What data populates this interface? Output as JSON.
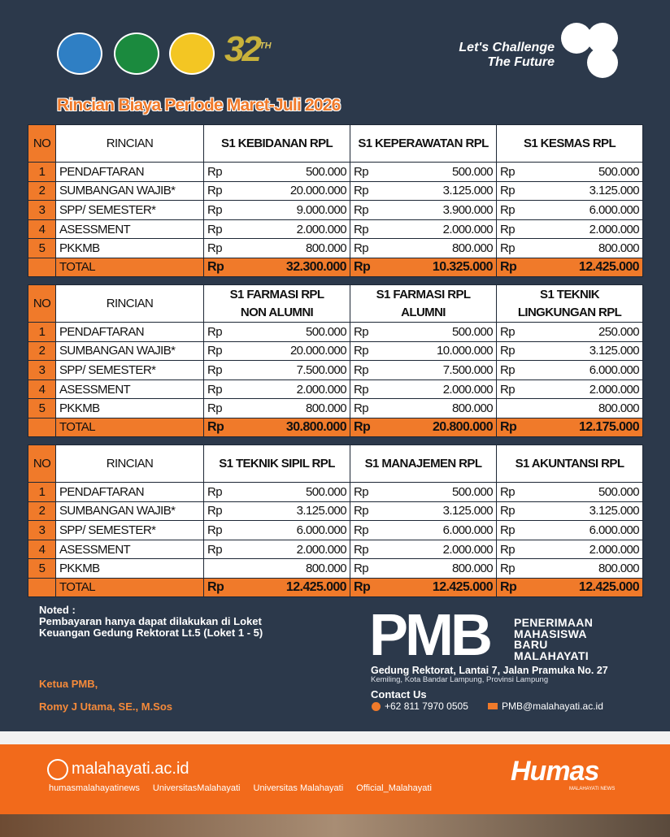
{
  "header": {
    "anniversary": "32",
    "anniversary_suffix": "TH",
    "tagline": [
      "Let's Challenge",
      "The Future"
    ]
  },
  "title": "Rincian Biaya Periode Maret-Juli 2026",
  "tables": [
    {
      "no_header": "NO",
      "item_header": "RINCIAN",
      "programs": [
        [
          "S1 KEBIDANAN RPL"
        ],
        [
          "S1 KEPERAWATAN RPL"
        ],
        [
          "S1 KESMAS RPL"
        ]
      ],
      "rows": [
        {
          "no": "1",
          "item": "PENDAFTARAN",
          "cells": [
            [
              "Rp",
              "500.000"
            ],
            [
              "Rp",
              "500.000"
            ],
            [
              "Rp",
              "500.000"
            ]
          ]
        },
        {
          "no": "2",
          "item": "SUMBANGAN WAJIB*",
          "cells": [
            [
              "Rp",
              "20.000.000"
            ],
            [
              "Rp",
              "3.125.000"
            ],
            [
              "Rp",
              "3.125.000"
            ]
          ]
        },
        {
          "no": "3",
          "item": "SPP/ SEMESTER*",
          "cells": [
            [
              "Rp",
              "9.000.000"
            ],
            [
              "Rp",
              "3.900.000"
            ],
            [
              "Rp",
              "6.000.000"
            ]
          ]
        },
        {
          "no": "4",
          "item": "ASESSMENT",
          "cells": [
            [
              "Rp",
              "2.000.000"
            ],
            [
              "Rp",
              "2.000.000"
            ],
            [
              "Rp",
              "2.000.000"
            ]
          ]
        },
        {
          "no": "5",
          "item": "PKKMB",
          "cells": [
            [
              "Rp",
              "800.000"
            ],
            [
              "Rp",
              "800.000"
            ],
            [
              "Rp",
              "800.000"
            ]
          ]
        }
      ],
      "total": {
        "label": "TOTAL",
        "cells": [
          [
            "Rp",
            "32.300.000"
          ],
          [
            "Rp",
            "10.325.000"
          ],
          [
            "Rp",
            "12.425.000"
          ]
        ]
      }
    },
    {
      "no_header": "NO",
      "item_header": "RINCIAN",
      "programs": [
        [
          "S1 FARMASI RPL",
          "NON ALUMNI"
        ],
        [
          "S1 FARMASI RPL",
          "ALUMNI"
        ],
        [
          "S1 TEKNIK",
          "LINGKUNGAN RPL"
        ]
      ],
      "rows": [
        {
          "no": "1",
          "item": "PENDAFTARAN",
          "cells": [
            [
              "Rp",
              "500.000"
            ],
            [
              "Rp",
              "500.000"
            ],
            [
              "Rp",
              "250.000"
            ]
          ]
        },
        {
          "no": "2",
          "item": "SUMBANGAN WAJIB*",
          "cells": [
            [
              "Rp",
              "20.000.000"
            ],
            [
              "Rp",
              "10.000.000"
            ],
            [
              "Rp",
              "3.125.000"
            ]
          ]
        },
        {
          "no": "3",
          "item": "SPP/ SEMESTER*",
          "cells": [
            [
              "Rp",
              "7.500.000"
            ],
            [
              "Rp",
              "7.500.000"
            ],
            [
              "Rp",
              "6.000.000"
            ]
          ]
        },
        {
          "no": "4",
          "item": "ASESSMENT",
          "cells": [
            [
              "Rp",
              "2.000.000"
            ],
            [
              "Rp",
              "2.000.000"
            ],
            [
              "Rp",
              "2.000.000"
            ]
          ]
        },
        {
          "no": "5",
          "item": "PKKMB",
          "cells": [
            [
              "Rp",
              "800.000"
            ],
            [
              "Rp",
              "800.000"
            ],
            [
              null,
              "800.000"
            ]
          ]
        }
      ],
      "total": {
        "label": "TOTAL",
        "cells": [
          [
            "Rp",
            "30.800.000"
          ],
          [
            "Rp",
            "20.800.000"
          ],
          [
            "Rp",
            "12.175.000"
          ]
        ]
      }
    },
    {
      "no_header": "NO",
      "item_header": "RINCIAN",
      "programs": [
        [
          "S1 TEKNIK SIPIL RPL"
        ],
        [
          "S1 MANAJEMEN RPL"
        ],
        [
          "S1 AKUNTANSI RPL"
        ]
      ],
      "rows": [
        {
          "no": "1",
          "item": "PENDAFTARAN",
          "cells": [
            [
              "Rp",
              "500.000"
            ],
            [
              "Rp",
              "500.000"
            ],
            [
              "Rp",
              "500.000"
            ]
          ]
        },
        {
          "no": "2",
          "item": "SUMBANGAN WAJIB*",
          "cells": [
            [
              "Rp",
              "3.125.000"
            ],
            [
              "Rp",
              "3.125.000"
            ],
            [
              "Rp",
              "3.125.000"
            ]
          ]
        },
        {
          "no": "3",
          "item": "SPP/ SEMESTER*",
          "cells": [
            [
              "Rp",
              "6.000.000"
            ],
            [
              "Rp",
              "6.000.000"
            ],
            [
              "Rp",
              "6.000.000"
            ]
          ]
        },
        {
          "no": "4",
          "item": "ASESSMENT",
          "cells": [
            [
              "Rp",
              "2.000.000"
            ],
            [
              "Rp",
              "2.000.000"
            ],
            [
              "Rp",
              "2.000.000"
            ]
          ]
        },
        {
          "no": "5",
          "item": "PKKMB",
          "cells": [
            [
              null,
              "800.000"
            ],
            [
              "Rp",
              "800.000"
            ],
            [
              "Rp",
              "800.000"
            ]
          ]
        }
      ],
      "total": {
        "label": "TOTAL",
        "cells": [
          [
            "Rp",
            "12.425.000"
          ],
          [
            "Rp",
            "12.425.000"
          ],
          [
            "Rp",
            "12.425.000"
          ]
        ]
      }
    }
  ],
  "note": {
    "heading": "Noted :",
    "lines": [
      "Pembayaran hanya dapat dilakukan di Loket",
      "Keuangan Gedung Rektorat Lt.5 (Loket 1 - 5)"
    ],
    "signer_role": "Ketua PMB,",
    "signer_name": "Romy J Utama, SE., M.Sos"
  },
  "pmb": {
    "logo": "PMB",
    "name_lines": [
      "PENERIMAAN",
      "MAHASISWA",
      "BARU",
      "MALAHAYATI"
    ],
    "address": "Gedung Rektorat, Lantai 7, Jalan Pramuka No. 27",
    "city": "Kemiling, Kota Bandar Lampung, Provinsi Lampung",
    "contact_heading": "Contact Us",
    "phone": "+62 811 7970 0505",
    "email": "PMB@malahayati.ac.id"
  },
  "footer": {
    "website": "malahayati.ac.id",
    "socials": [
      "humasmalahayatinews",
      "UniversitasMalahayati",
      "Universitas Malahayati",
      "Official_Malahayati"
    ],
    "brand": "Humas",
    "brand_sub": "MALAHAYATI NEWS"
  }
}
